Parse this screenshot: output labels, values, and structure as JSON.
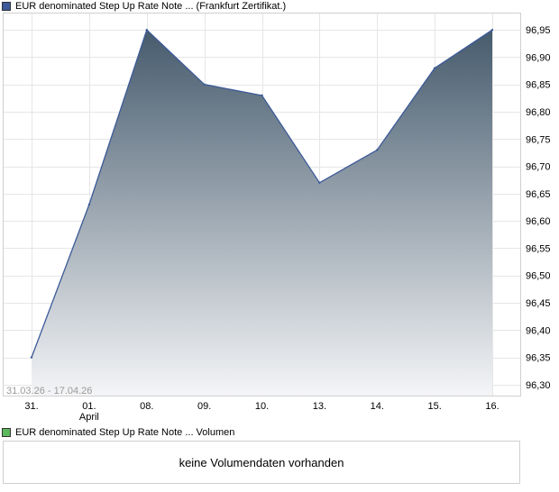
{
  "legend": {
    "price_label": "EUR denominated Step Up Rate Note ... (Frankfurt Zertifikat.)",
    "price_color": "#3c5a99",
    "volume_label": "EUR denominated Step Up Rate Note ... Volumen",
    "volume_color": "#5cb85c"
  },
  "volume_panel": {
    "message": "keine Volumendaten vorhanden"
  },
  "chart_data": {
    "type": "area",
    "date_range_label": "31.03.26 - 17.04.26",
    "x": [
      "31.",
      "01.",
      "08.",
      "09.",
      "10.",
      "13.",
      "14.",
      "15.",
      "16."
    ],
    "x_sublabels": [
      "",
      "April",
      "",
      "",
      "",
      "",
      "",
      "",
      ""
    ],
    "values": [
      96.35,
      96.63,
      96.95,
      96.85,
      96.83,
      96.67,
      96.73,
      96.88,
      96.95
    ],
    "ylim": [
      96.28,
      96.98
    ],
    "yticks": [
      "96,95",
      "96,90",
      "96,85",
      "96,80",
      "96,75",
      "96,70",
      "96,65",
      "96,60",
      "96,55",
      "96,50",
      "96,45",
      "96,40",
      "96,35",
      "96,30"
    ],
    "ytick_values": [
      96.95,
      96.9,
      96.85,
      96.8,
      96.75,
      96.7,
      96.65,
      96.6,
      96.55,
      96.5,
      96.45,
      96.4,
      96.35,
      96.3
    ],
    "line_color": "#3c5a99",
    "fill_top_color": "#465b6d",
    "fill_bottom_color": "#f4f5f7",
    "grid": true
  }
}
